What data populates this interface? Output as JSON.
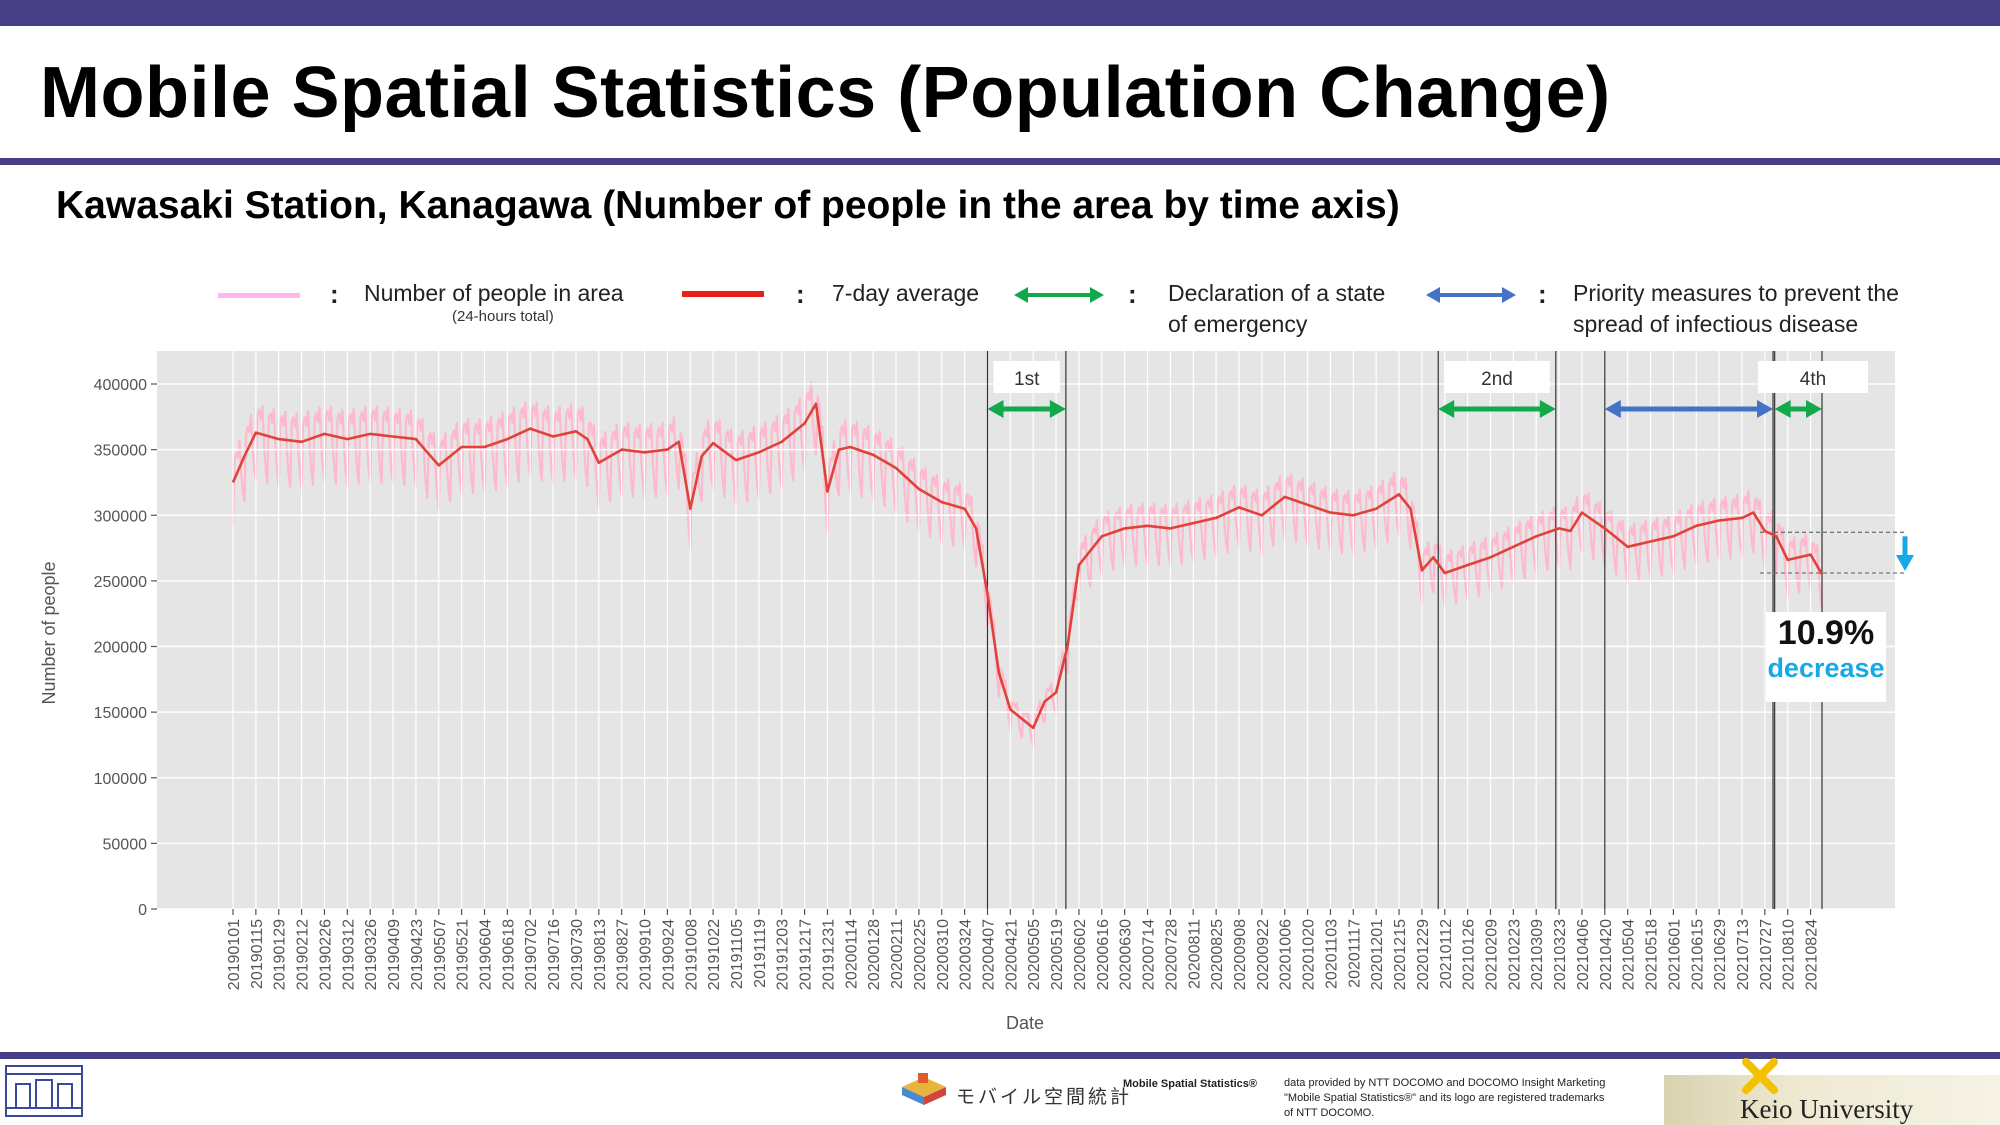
{
  "header": {
    "title": "Mobile Spatial Statistics (Population Change)",
    "subtitle": "Kawasaki Station, Kanagawa (Number of people in the area by time axis)"
  },
  "legend": {
    "daily_label": "Number of people in area",
    "daily_sublabel": "(24-hours total)",
    "avg_label": "7-day average",
    "emergency_label_1": "Declaration of a state",
    "emergency_label_2": "of emergency",
    "priority_label_1": "Priority measures to prevent the",
    "priority_label_2": "spread of infectious disease",
    "colon": ":"
  },
  "annotation": {
    "percent": "10.9%",
    "word": "decrease"
  },
  "colors": {
    "header_bar": "#463f86",
    "daily": "#ffb6cc",
    "average": "#e0423a",
    "emergency": "#13a94b",
    "priority": "#4472c4",
    "decrease": "#17a9e6",
    "plot_bg": "#e5e5e5"
  },
  "footer": {
    "mobile_logo": "モバイル空間統計",
    "brand": "Mobile Spatial Statistics®",
    "note_1": "data provided by NTT DOCOMO and DOCOMO Insight Marketing",
    "note_2": "\"Mobile Spatial Statistics®\" and its logo are registered trademarks",
    "note_3": "of NTT DOCOMO.",
    "university": "Keio University"
  },
  "chart_data": {
    "type": "line",
    "xlabel": "Date",
    "ylabel": "Number of people",
    "ylim": [
      0,
      400000
    ],
    "yticks": [
      0,
      50000,
      100000,
      150000,
      200000,
      250000,
      300000,
      350000,
      400000
    ],
    "grid": true,
    "x_tick_labels": [
      "20190101",
      "20190115",
      "20190129",
      "20190212",
      "20190226",
      "20190312",
      "20190326",
      "20190409",
      "20190423",
      "20190507",
      "20190521",
      "20190604",
      "20190618",
      "20190702",
      "20190716",
      "20190730",
      "20190813",
      "20190827",
      "20190910",
      "20190924",
      "20191008",
      "20191022",
      "20191105",
      "20191119",
      "20191203",
      "20191217",
      "20191231",
      "20200114",
      "20200128",
      "20200211",
      "20200225",
      "20200310",
      "20200324",
      "20200407",
      "20200421",
      "20200505",
      "20200519",
      "20200602",
      "20200616",
      "20200630",
      "20200714",
      "20200728",
      "20200811",
      "20200825",
      "20200908",
      "20200922",
      "20201006",
      "20201020",
      "20201103",
      "20201117",
      "20201201",
      "20201215",
      "20201229",
      "20210112",
      "20210126",
      "20210209",
      "20210223",
      "20210309",
      "20210323",
      "20210406",
      "20210420",
      "20210504",
      "20210518",
      "20210601",
      "20210615",
      "20210629",
      "20210713",
      "20210727",
      "20210810",
      "20210824"
    ],
    "series": [
      {
        "name": "7-day average",
        "x": [
          "20190101",
          "20190108",
          "20190115",
          "20190129",
          "20190212",
          "20190226",
          "20190312",
          "20190326",
          "20190409",
          "20190423",
          "20190430",
          "20190507",
          "20190521",
          "20190604",
          "20190618",
          "20190702",
          "20190716",
          "20190730",
          "20190806",
          "20190813",
          "20190827",
          "20190910",
          "20190924",
          "20191001",
          "20191008",
          "20191015",
          "20191022",
          "20191105",
          "20191119",
          "20191203",
          "20191217",
          "20191224",
          "20191231",
          "20200107",
          "20200114",
          "20200128",
          "20200211",
          "20200225",
          "20200310",
          "20200324",
          "20200331",
          "20200407",
          "20200414",
          "20200421",
          "20200505",
          "20200512",
          "20200519",
          "20200526",
          "20200602",
          "20200616",
          "20200630",
          "20200714",
          "20200728",
          "20200811",
          "20200825",
          "20200908",
          "20200922",
          "20201006",
          "20201020",
          "20201103",
          "20201117",
          "20201201",
          "20201215",
          "20201222",
          "20201229",
          "20210105",
          "20210112",
          "20210126",
          "20210209",
          "20210223",
          "20210309",
          "20210323",
          "20210330",
          "20210406",
          "20210420",
          "20210504",
          "20210518",
          "20210601",
          "20210615",
          "20210629",
          "20210713",
          "20210720",
          "20210727",
          "20210803",
          "20210810",
          "20210824",
          "20210831"
        ],
        "values": [
          325000,
          345000,
          363000,
          358000,
          356000,
          362000,
          358000,
          362000,
          360000,
          358000,
          348000,
          338000,
          352000,
          352000,
          358000,
          366000,
          360000,
          364000,
          358000,
          340000,
          350000,
          348000,
          350000,
          356000,
          305000,
          345000,
          355000,
          342000,
          348000,
          356000,
          370000,
          385000,
          318000,
          350000,
          352000,
          346000,
          336000,
          320000,
          310000,
          305000,
          290000,
          240000,
          180000,
          152000,
          138000,
          158000,
          165000,
          200000,
          262000,
          284000,
          290000,
          292000,
          290000,
          294000,
          298000,
          306000,
          300000,
          314000,
          308000,
          302000,
          300000,
          305000,
          316000,
          305000,
          258000,
          268000,
          256000,
          262000,
          268000,
          276000,
          284000,
          290000,
          288000,
          302000,
          290000,
          276000,
          280000,
          284000,
          292000,
          296000,
          298000,
          302000,
          288000,
          284000,
          266000,
          270000,
          255000
        ]
      },
      {
        "name": "Number of people in area"
      }
    ],
    "periods": [
      {
        "label": "1st",
        "type": "emergency",
        "start": "20200407",
        "end": "20200525"
      },
      {
        "label": "2nd",
        "type": "emergency",
        "start": "20210108",
        "end": "20210321"
      },
      {
        "label": "",
        "type": "priority",
        "start": "20210420",
        "end": "20210801"
      },
      {
        "label": "4th",
        "type": "emergency",
        "start": "20210802",
        "end": "20210831"
      }
    ],
    "reference_levels": [
      287000,
      256000
    ]
  }
}
